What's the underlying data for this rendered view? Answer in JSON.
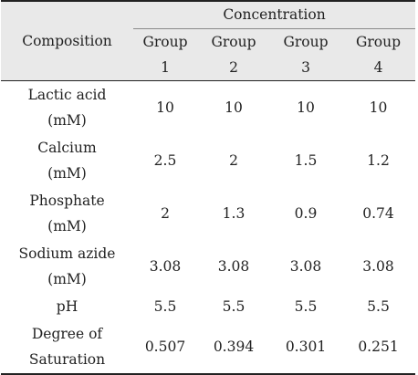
{
  "table": {
    "header": {
      "composition": "Composition",
      "concentration": "Concentration",
      "groups": [
        {
          "line1": "Group",
          "line2": "1"
        },
        {
          "line1": "Group",
          "line2": "2"
        },
        {
          "line1": "Group",
          "line2": "3"
        },
        {
          "line1": "Group",
          "line2": "4"
        }
      ]
    },
    "rows": [
      {
        "line1": "Lactic acid",
        "line2": "(mM)",
        "values": [
          "10",
          "10",
          "10",
          "10"
        ]
      },
      {
        "line1": "Calcium",
        "line2": "(mM)",
        "values": [
          "2.5",
          "2",
          "1.5",
          "1.2"
        ]
      },
      {
        "line1": "Phosphate",
        "line2": "(mM)",
        "values": [
          "2",
          "1.3",
          "0.9",
          "0.74"
        ]
      },
      {
        "line1": "Sodium azide",
        "line2": "(mM)",
        "values": [
          "3.08",
          "3.08",
          "3.08",
          "3.08"
        ]
      },
      {
        "line1": "pH",
        "line2": "",
        "values": [
          "5.5",
          "5.5",
          "5.5",
          "5.5"
        ]
      },
      {
        "line1": "Degree of",
        "line2": "Saturation",
        "values": [
          "0.507",
          "0.394",
          "0.301",
          "0.251"
        ]
      }
    ]
  }
}
